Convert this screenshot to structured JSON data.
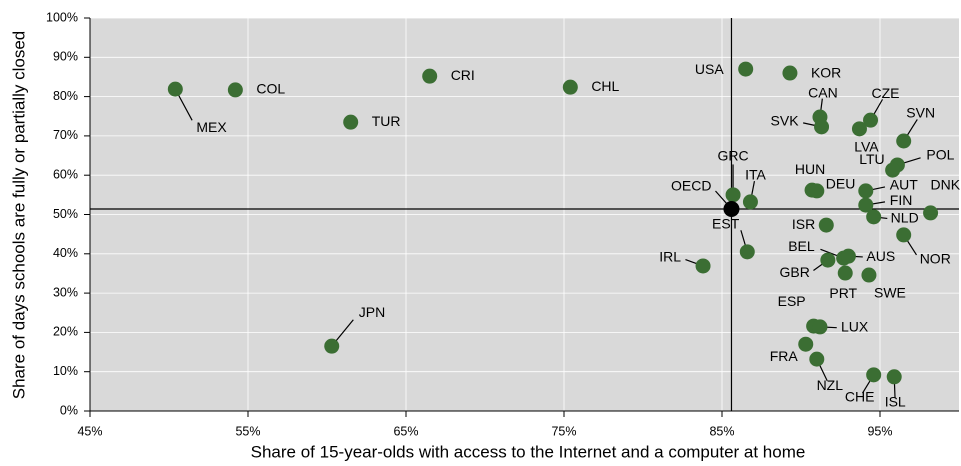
{
  "chart_data": {
    "type": "scatter",
    "x_label": "Share of 15-year-olds with access to the Internet and a computer at home",
    "y_label": "Share of days schools are fully or partially closed",
    "xlim": [
      45,
      100
    ],
    "ylim": [
      0,
      100
    ],
    "xticks": [
      {
        "value": 45,
        "label": "45%"
      },
      {
        "value": 55,
        "label": "55%"
      },
      {
        "value": 65,
        "label": "65%"
      },
      {
        "value": 75,
        "label": "75%"
      },
      {
        "value": 85,
        "label": "85%"
      },
      {
        "value": 95,
        "label": "95%"
      }
    ],
    "yticks": [
      {
        "value": 0,
        "label": "0%"
      },
      {
        "value": 10,
        "label": "10%"
      },
      {
        "value": 20,
        "label": "20%"
      },
      {
        "value": 30,
        "label": "30%"
      },
      {
        "value": 40,
        "label": "40%"
      },
      {
        "value": 50,
        "label": "50%"
      },
      {
        "value": 60,
        "label": "60%"
      },
      {
        "value": 70,
        "label": "70%"
      },
      {
        "value": 80,
        "label": "80%"
      },
      {
        "value": 90,
        "label": "90%"
      },
      {
        "value": 100,
        "label": "100%"
      }
    ],
    "grid": true,
    "color": "#3b6e33",
    "points": [
      {
        "label": "MEX",
        "x": 50.4,
        "y": 81.9
      },
      {
        "label": "COL",
        "x": 54.2,
        "y": 81.7
      },
      {
        "label": "CRI",
        "x": 66.5,
        "y": 85.2
      },
      {
        "label": "CHL",
        "x": 75.4,
        "y": 82.4
      },
      {
        "label": "TUR",
        "x": 61.5,
        "y": 73.5
      },
      {
        "label": "JPN",
        "x": 60.3,
        "y": 16.5
      },
      {
        "label": "USA",
        "x": 86.5,
        "y": 87.0
      },
      {
        "label": "KOR",
        "x": 89.3,
        "y": 86.0
      },
      {
        "label": "CAN",
        "x": 91.2,
        "y": 74.8
      },
      {
        "label": "CZE",
        "x": 94.4,
        "y": 74.0
      },
      {
        "label": "SVK",
        "x": 91.3,
        "y": 72.3
      },
      {
        "label": "LVA",
        "x": 93.7,
        "y": 71.8
      },
      {
        "label": "SVN",
        "x": 96.5,
        "y": 68.7
      },
      {
        "label": "POL",
        "x": 96.1,
        "y": 62.6
      },
      {
        "label": "LTU",
        "x": 95.8,
        "y": 61.3
      },
      {
        "label": "GRC",
        "x": 85.7,
        "y": 55.0
      },
      {
        "label": "ITA",
        "x": 86.8,
        "y": 53.2
      },
      {
        "label": "HUN",
        "x": 90.7,
        "y": 56.2
      },
      {
        "label": "DEU",
        "x": 91.0,
        "y": 56.0
      },
      {
        "label": "AUT",
        "x": 94.1,
        "y": 56.0
      },
      {
        "label": "FIN",
        "x": 94.1,
        "y": 52.4
      },
      {
        "label": "DNK",
        "x": 98.2,
        "y": 50.4
      },
      {
        "label": "NLD",
        "x": 94.6,
        "y": 49.4
      },
      {
        "label": "ISR",
        "x": 91.6,
        "y": 47.3
      },
      {
        "label": "NOR",
        "x": 96.5,
        "y": 44.8
      },
      {
        "label": "EST",
        "x": 86.6,
        "y": 40.5
      },
      {
        "label": "IRL",
        "x": 83.8,
        "y": 36.9
      },
      {
        "label": "BEL",
        "x": 92.7,
        "y": 38.9
      },
      {
        "label": "AUS",
        "x": 93.0,
        "y": 39.4
      },
      {
        "label": "GBR",
        "x": 91.7,
        "y": 38.4
      },
      {
        "label": "PRT",
        "x": 92.8,
        "y": 35.1
      },
      {
        "label": "SWE",
        "x": 94.3,
        "y": 34.6
      },
      {
        "label": "ESP",
        "x": 90.8,
        "y": 21.6
      },
      {
        "label": "LUX",
        "x": 91.2,
        "y": 21.4
      },
      {
        "label": "FRA",
        "x": 90.3,
        "y": 17.0
      },
      {
        "label": "NZL",
        "x": 91.0,
        "y": 13.2
      },
      {
        "label": "CHE",
        "x": 94.6,
        "y": 9.2
      },
      {
        "label": "ISL",
        "x": 95.9,
        "y": 8.7
      }
    ],
    "reference": {
      "label": "OECD",
      "x": 85.6,
      "y": 51.4,
      "color": "#000000"
    }
  }
}
